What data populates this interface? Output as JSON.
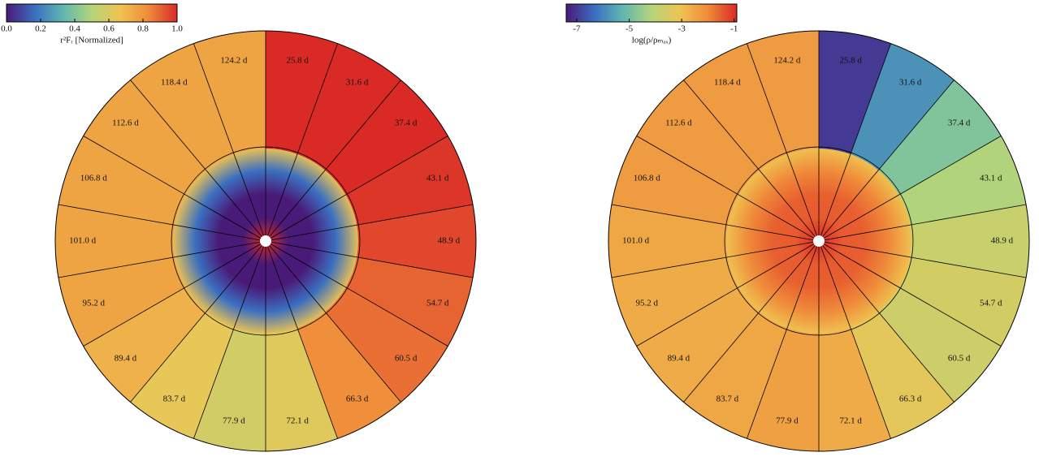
{
  "chart_data": [
    {
      "type": "wedge",
      "colorbar_label": "r²Fᵣ [Normalized]",
      "colormap": [
        "#4a1a78",
        "#3b6fc0",
        "#5fb8b0",
        "#b5d47a",
        "#efc451",
        "#ef8a3a",
        "#d92a26"
      ],
      "clim": [
        0,
        1
      ],
      "cticks": [
        {
          "value": 0,
          "label": "0.0"
        },
        {
          "value": 0.2,
          "label": "0.2"
        },
        {
          "value": 0.4,
          "label": "0.4"
        },
        {
          "value": 0.6,
          "label": "0.6"
        },
        {
          "value": 0.8,
          "label": "0.8"
        },
        {
          "value": 1,
          "label": "1.0"
        }
      ],
      "categories": [
        "25.8 d",
        "31.6 d",
        "37.4 d",
        "43.1 d",
        "48.9 d",
        "54.7 d",
        "60.5 d",
        "66.3 d",
        "72.1 d",
        "77.9 d",
        "83.7 d",
        "89.4 d",
        "95.2 d",
        "101.0 d",
        "106.8 d",
        "112.6 d",
        "118.4 d",
        "124.2 d"
      ],
      "values": [
        1.0,
        1.0,
        1.0,
        0.98,
        0.95,
        0.9,
        0.88,
        0.82,
        0.62,
        0.58,
        0.64,
        0.72,
        0.76,
        0.76,
        0.76,
        0.76,
        0.76,
        0.76
      ]
    },
    {
      "type": "wedge",
      "colorbar_label": "log(ρ/ρₘₐₓ)",
      "colormap": [
        "#4a1a78",
        "#3b6fc0",
        "#5fb8b0",
        "#b5d47a",
        "#efc451",
        "#ef8a3a",
        "#d92a26"
      ],
      "clim": [
        -7.4,
        -0.9
      ],
      "cticks": [
        -7,
        -5,
        -3,
        -1
      ],
      "categories": [
        "25.8 d",
        "31.6 d",
        "37.4 d",
        "43.1 d",
        "48.9 d",
        "54.7 d",
        "60.5 d",
        "66.3 d",
        "72.1 d",
        "77.9 d",
        "83.7 d",
        "89.4 d",
        "95.2 d",
        "101.0 d",
        "106.8 d",
        "112.6 d",
        "118.4 d",
        "124.2 d"
      ],
      "values": [
        -7,
        -5.8,
        -4.8,
        -4.2,
        -3.8,
        -3.6,
        -3.7,
        -3.3,
        -2.6,
        -2.4,
        -2.5,
        -2.6,
        -2.6,
        -2.5,
        -2.3,
        -2.3,
        -2.3,
        -2.3
      ]
    }
  ]
}
